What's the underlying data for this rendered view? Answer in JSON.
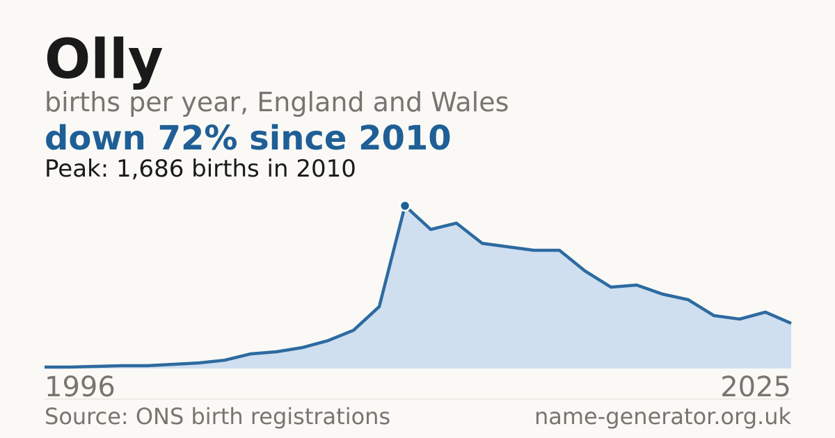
{
  "chart_data": {
    "type": "area",
    "title": "Olly",
    "subtitle": "births per year, England and Wales",
    "headline": "down 72% since 2010",
    "peak_note": "Peak: 1,686 births in 2010",
    "source": "Source: ONS birth registrations",
    "site": "name-generator.org.uk",
    "x": [
      1996,
      1997,
      1998,
      1999,
      2000,
      2001,
      2002,
      2003,
      2004,
      2005,
      2006,
      2007,
      2008,
      2009,
      2010,
      2011,
      2012,
      2013,
      2014,
      2015,
      2016,
      2017,
      2018,
      2019,
      2020,
      2021,
      2022,
      2023,
      2024,
      2025
    ],
    "values": [
      14,
      14,
      22,
      29,
      29,
      43,
      58,
      86,
      151,
      173,
      216,
      288,
      396,
      641,
      1686,
      1441,
      1506,
      1297,
      1261,
      1225,
      1225,
      1009,
      843,
      865,
      771,
      713,
      548,
      512,
      584,
      468
    ],
    "color": "#2d6aa0",
    "fill": "#cfdff0"
  }
}
